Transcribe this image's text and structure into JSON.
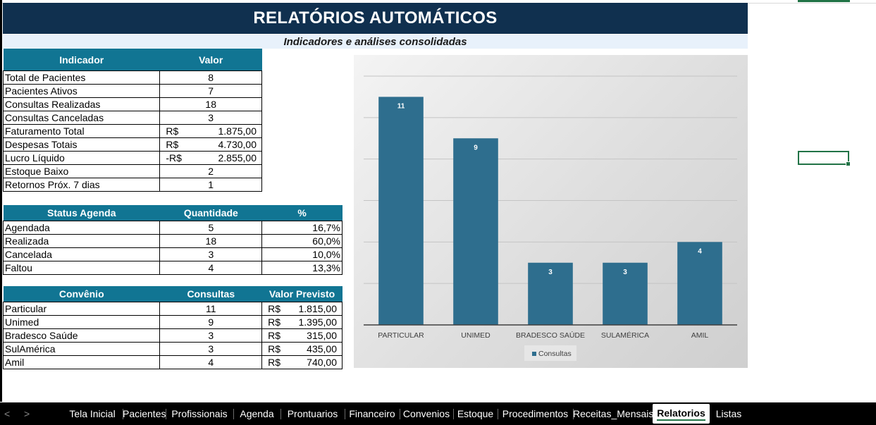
{
  "banner": {
    "title": "RELATÓRIOS AUTOMÁTICOS",
    "subtitle": "Indicadores e análises consolidadas"
  },
  "indicators": {
    "headers": [
      "Indicador",
      "Valor"
    ],
    "rows": [
      {
        "label": "Total de Pacientes",
        "value": "8"
      },
      {
        "label": "Pacientes Ativos",
        "value": "7"
      },
      {
        "label": "Consultas Realizadas",
        "value": "18"
      },
      {
        "label": "Consultas Canceladas",
        "value": "3"
      },
      {
        "label": "Faturamento Total",
        "prefix": "R$",
        "amount": "1.875,00"
      },
      {
        "label": "Despesas Totais",
        "prefix": "R$",
        "amount": "4.730,00"
      },
      {
        "label": "Lucro Líquido",
        "prefix": "-R$",
        "amount": "2.855,00"
      },
      {
        "label": "Estoque Baixo",
        "value": "2"
      },
      {
        "label": "Retornos Próx. 7 dias",
        "value": "1"
      }
    ]
  },
  "agenda": {
    "headers": [
      "Status Agenda",
      "Quantidade",
      "%"
    ],
    "rows": [
      {
        "status": "Agendada",
        "qty": "5",
        "pct": "16,7%"
      },
      {
        "status": "Realizada",
        "qty": "18",
        "pct": "60,0%"
      },
      {
        "status": "Cancelada",
        "qty": "3",
        "pct": "10,0%"
      },
      {
        "status": "Faltou",
        "qty": "4",
        "pct": "13,3%"
      }
    ]
  },
  "convenio": {
    "headers": [
      "Convênio",
      "Consultas",
      "Valor Previsto"
    ],
    "rows": [
      {
        "name": "Particular",
        "count": "11",
        "prefix": "R$",
        "amount": "1.815,00"
      },
      {
        "name": "Unimed",
        "count": "9",
        "prefix": "R$",
        "amount": "1.395,00"
      },
      {
        "name": "Bradesco Saúde",
        "count": "3",
        "prefix": "R$",
        "amount": "315,00"
      },
      {
        "name": "SulAmérica",
        "count": "3",
        "prefix": "R$",
        "amount": "435,00"
      },
      {
        "name": "Amil",
        "count": "4",
        "prefix": "R$",
        "amount": "740,00"
      }
    ]
  },
  "chart_data": {
    "type": "bar",
    "categories": [
      "PARTICULAR",
      "UNIMED",
      "BRADESCO SAÚDE",
      "SULAMÉRICA",
      "AMIL"
    ],
    "series": [
      {
        "name": "Consultas",
        "values": [
          11,
          9,
          3,
          3,
          4
        ]
      }
    ],
    "title": "",
    "xlabel": "",
    "ylabel": "",
    "ylim": [
      0,
      12
    ],
    "grid": true,
    "legend": "bottom",
    "bar_color": "#2e6e8e"
  },
  "tabs": {
    "items": [
      "Tela Inicial",
      "Pacientes",
      "Profissionais",
      "Agenda",
      "Prontuarios",
      "Financeiro",
      "Convenios",
      "Estoque",
      "Procedimentos",
      "Receitas_Mensais",
      "Relatorios",
      "Listas"
    ],
    "active": "Relatorios",
    "prev": "<",
    "next": ">"
  },
  "colors": {
    "header_dark": "#10304f",
    "table_header": "#117593",
    "excel_green": "#217346"
  }
}
